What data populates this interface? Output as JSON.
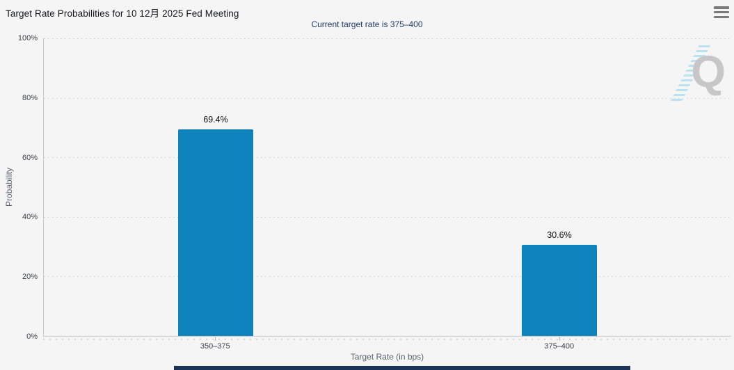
{
  "header": {
    "title": "Target Rate Probabilities for 10 12月 2025 Fed Meeting",
    "subtitle": "Current target rate is 375–400"
  },
  "watermark": {
    "letter": "Q"
  },
  "chart_data": {
    "type": "bar",
    "title": "Target Rate Probabilities for 10 12月 2025 Fed Meeting",
    "subtitle": "Current target rate is 375–400",
    "categories": [
      "350–375",
      "375–400"
    ],
    "values": [
      69.4,
      30.6
    ],
    "value_labels": [
      "69.4%",
      "30.6%"
    ],
    "xlabel": "Target Rate (in bps)",
    "ylabel": "Probability",
    "ylim": [
      0,
      100
    ],
    "yticks": [
      0,
      20,
      40,
      60,
      80,
      100
    ],
    "ytick_labels": [
      "0%",
      "20%",
      "40%",
      "60%",
      "80%",
      "100%"
    ],
    "legend": "none",
    "grid": "horizontal-dotted",
    "bar_color": "#0e82ba"
  },
  "colors": {
    "bar": "#0e82ba",
    "title_text": "#14161c",
    "subtitle_text": "#1e3a63",
    "axis_tick_text": "#3b4049",
    "axis_title_text": "#5b6470",
    "background": "#f5f5f6",
    "gridline": "#caccd2",
    "axis_line": "#c6c8cc",
    "bottom_bar": "#1c3357",
    "watermark_q": "#c7c7c9",
    "watermark_stripes": "#b0def1"
  }
}
